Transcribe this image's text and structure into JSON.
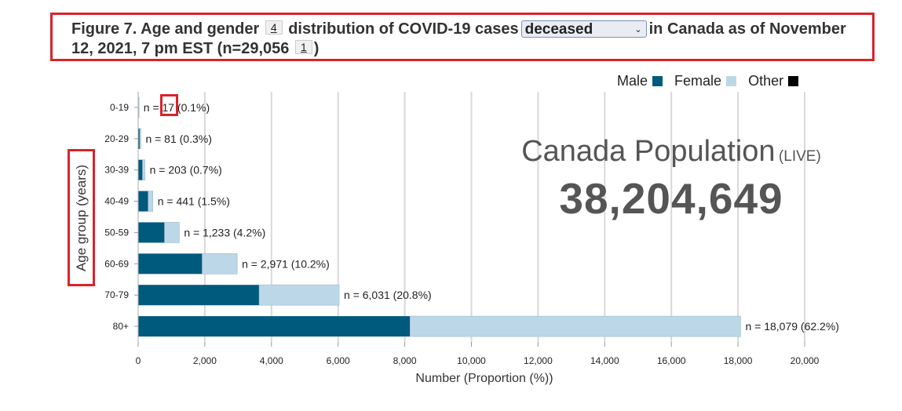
{
  "title": {
    "part1": "Figure 7. Age and gender",
    "fn1": "4",
    "part2": "distribution of COVID-19 cases",
    "selected_status": "deceased",
    "part3": "in Canada as of November 12, 2021, 7 pm EST (n=29,056",
    "fn2": "1",
    "part4": ")"
  },
  "legend": [
    {
      "label": "Male",
      "color": "#005a7d"
    },
    {
      "label": "Female",
      "color": "#bcd8e8"
    },
    {
      "label": "Other",
      "color": "#000000"
    }
  ],
  "population": {
    "title": "Canada Population",
    "live": "(LIVE)",
    "count": "38,204,649"
  },
  "chart_data": {
    "type": "bar",
    "orientation": "horizontal",
    "stacked": true,
    "categories": [
      "0-19",
      "20-29",
      "30-39",
      "40-49",
      "50-59",
      "60-69",
      "70-79",
      "80+"
    ],
    "series": [
      {
        "name": "Male",
        "values": [
          10,
          48,
          130,
          300,
          790,
          1920,
          3630,
          8160
        ]
      },
      {
        "name": "Female",
        "values": [
          7,
          33,
          73,
          141,
          443,
          1051,
          2401,
          9919
        ]
      },
      {
        "name": "Other",
        "values": [
          0,
          0,
          0,
          0,
          0,
          0,
          0,
          0
        ]
      }
    ],
    "data_labels": [
      "n = 17 (0.1%)",
      "n = 81 (0.3%)",
      "n = 203 (0.7%)",
      "n = 441 (1.5%)",
      "n = 1,233 (4.2%)",
      "n = 2,971 (10.2%)",
      "n = 6,031 (20.8%)",
      "n = 18,079 (62.2%)"
    ],
    "xticks": [
      0,
      2000,
      4000,
      6000,
      8000,
      10000,
      12000,
      14000,
      16000,
      18000,
      20000
    ],
    "xtick_labels": [
      "0",
      "2,000",
      "4,000",
      "6,000",
      "8,000",
      "10,000",
      "12,000",
      "14,000",
      "16,000",
      "18,000",
      "20,000"
    ],
    "xlim": [
      0,
      20000
    ],
    "xlabel": "Number (Proportion (%))",
    "ylabel": "Age group (years)",
    "grid": true,
    "legend_position": "top-right"
  }
}
